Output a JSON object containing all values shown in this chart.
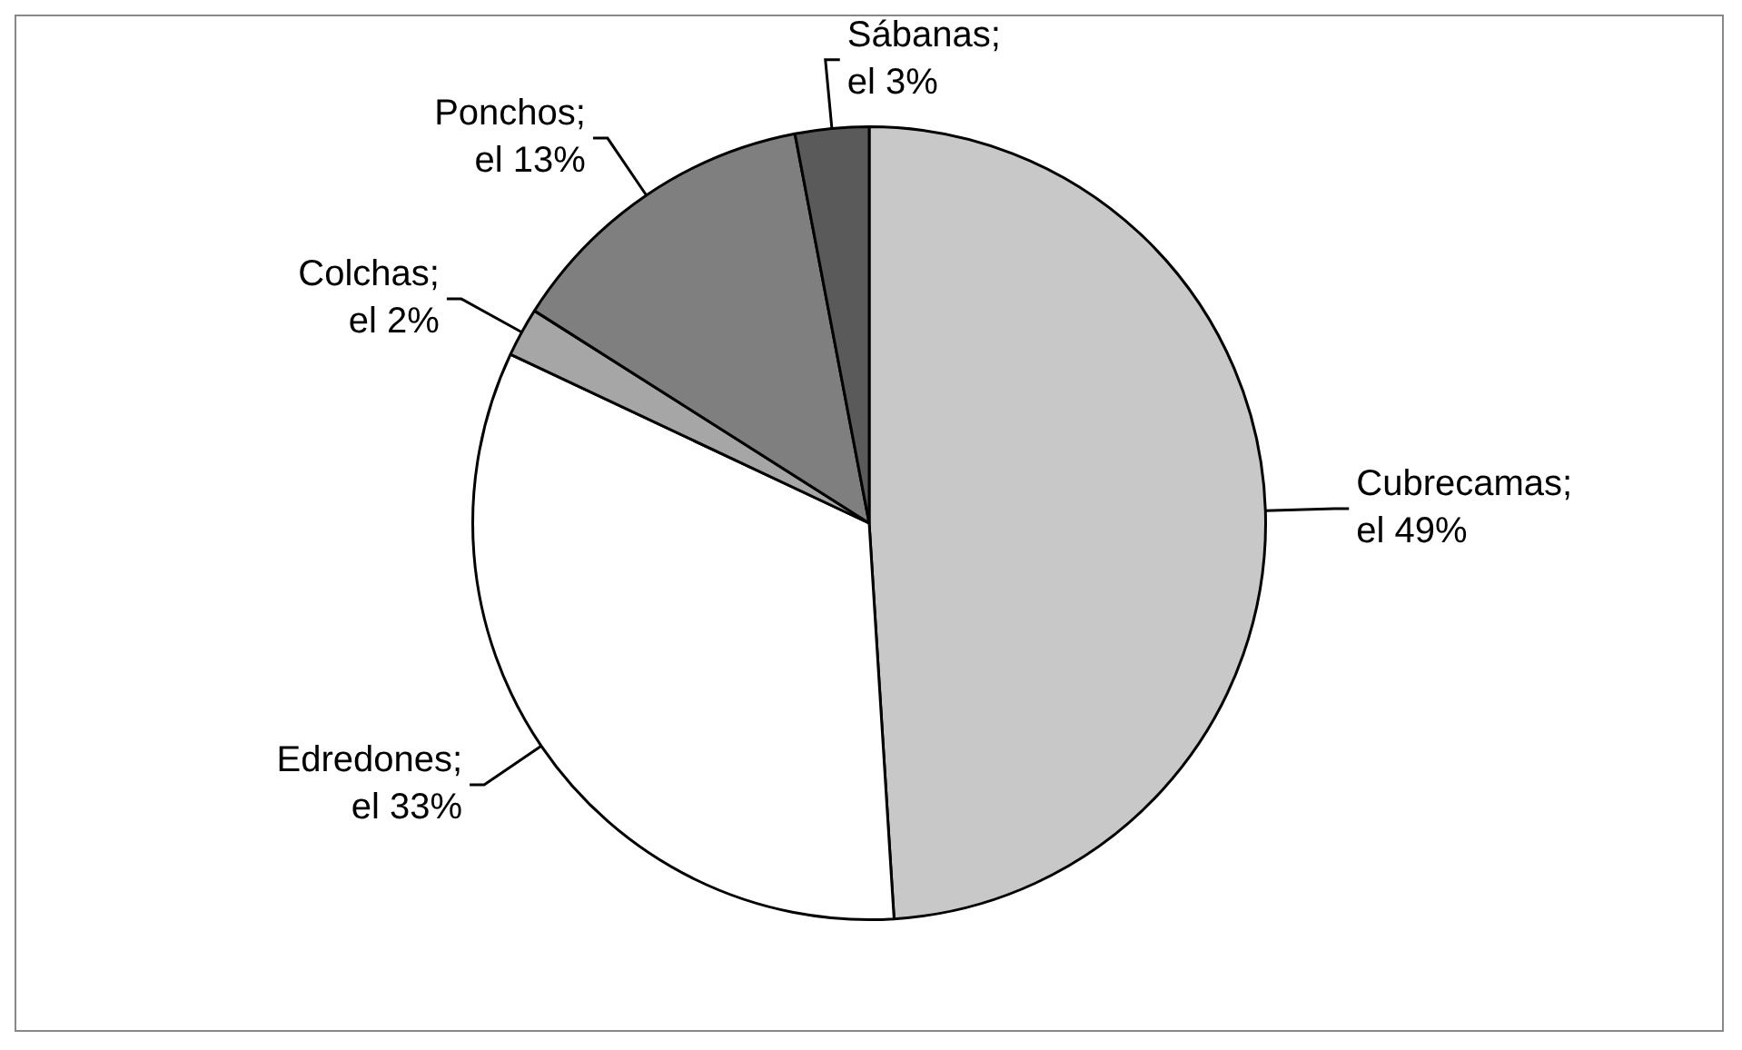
{
  "chart_data": {
    "type": "pie",
    "categories": [
      "Cubrecamas",
      "Edredones",
      "Colchas",
      "Ponchos",
      "Sábanas"
    ],
    "values": [
      49,
      33,
      2,
      13,
      3
    ],
    "colors": [
      "#c8c8c8",
      "#ffffff",
      "#a6a6a6",
      "#7f7f7f",
      "#5a5a5a"
    ],
    "value_labels": [
      ";\nel 49%",
      ";\nel 33%",
      ";\nel 2%",
      ";\nel 13%",
      ";\nel 3%"
    ],
    "legend": false
  }
}
